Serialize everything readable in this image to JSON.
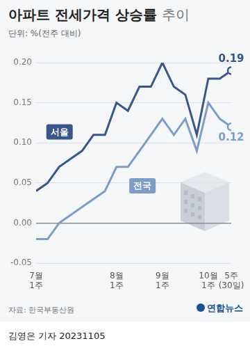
{
  "chart_data": {
    "type": "line",
    "title": "아파트 전세가격 상승률 추이",
    "subtitle": "단위: %(전주 대비)",
    "source": "자료: 한국부동산원",
    "publisher": "연합뉴스",
    "byline": "김영은 기자 20231105",
    "categories": [
      "7월 1주",
      null,
      null,
      null,
      null,
      null,
      null,
      "8월 1주",
      null,
      null,
      null,
      "9월 1주",
      null,
      null,
      null,
      "10월 1주",
      null,
      "5주 (30일)"
    ],
    "series": [
      {
        "name": "서울",
        "color": "#3a5688",
        "marker": "end",
        "values": [
          0.04,
          0.05,
          0.07,
          0.08,
          0.09,
          0.11,
          0.11,
          0.15,
          0.14,
          0.17,
          0.17,
          0.2,
          0.17,
          0.16,
          0.11,
          0.18,
          0.18,
          0.19
        ],
        "value_labels": [
          null,
          null,
          null,
          null,
          null,
          null,
          null,
          null,
          null,
          null,
          null,
          null,
          null,
          null,
          null,
          null,
          null,
          "0.19"
        ]
      },
      {
        "name": "전국",
        "color": "#7d9dc6",
        "marker": "end",
        "values": [
          -0.02,
          -0.02,
          0.0,
          0.01,
          0.02,
          0.03,
          0.04,
          0.07,
          0.07,
          0.09,
          0.11,
          0.13,
          0.11,
          0.13,
          0.09,
          0.15,
          0.13,
          0.12
        ],
        "value_labels": [
          null,
          null,
          null,
          null,
          null,
          null,
          null,
          null,
          null,
          null,
          null,
          null,
          null,
          null,
          null,
          null,
          null,
          "0.12"
        ]
      }
    ],
    "ylim": [
      -0.05,
      0.2
    ],
    "yticks": [
      -0.05,
      {
        "value": 0,
        "label": "0.00"
      },
      0.05,
      {
        "value": 0.1,
        "label": "0.10"
      },
      0.15,
      {
        "value": 0.2,
        "label": "0.20"
      }
    ],
    "grid": true
  }
}
